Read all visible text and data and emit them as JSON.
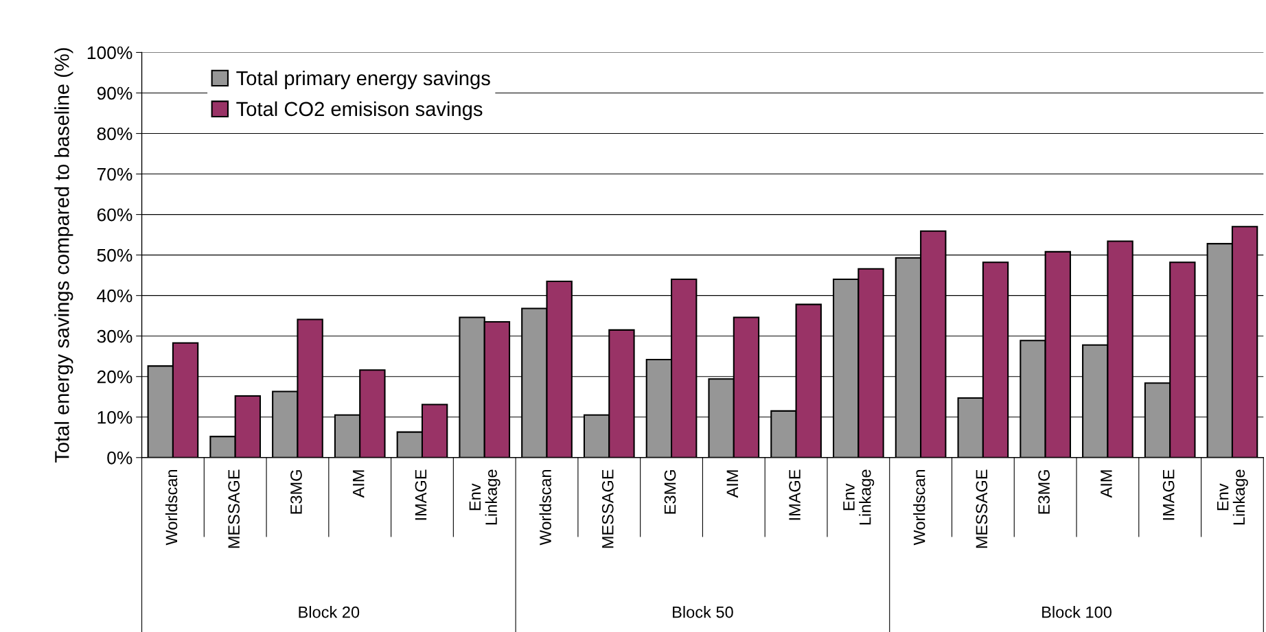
{
  "chart_data": {
    "type": "bar",
    "ylabel": "Total energy savings compared to baseline (%)",
    "categories": [
      "Worldscan",
      "MESSAGE",
      "E3MG",
      "AIM",
      "IMAGE",
      "Env\nLinkage",
      "Worldscan",
      "MESSAGE",
      "E3MG",
      "AIM",
      "IMAGE",
      "Env\nLinkage",
      "Worldscan",
      "MESSAGE",
      "E3MG",
      "AIM",
      "IMAGE",
      "Env\nLinkage"
    ],
    "series": [
      {
        "name": "Total primary energy savings",
        "color": "#969696",
        "values": [
          22.6,
          5.2,
          16.3,
          10.5,
          6.3,
          34.6,
          36.8,
          10.5,
          24.2,
          19.4,
          11.5,
          44.0,
          49.3,
          14.7,
          28.9,
          27.8,
          18.4,
          52.8
        ]
      },
      {
        "name": "Total CO2 emisison savings",
        "color": "#993366",
        "values": [
          28.3,
          15.2,
          34.1,
          21.6,
          13.1,
          33.5,
          43.5,
          31.5,
          44.0,
          34.6,
          37.8,
          46.6,
          55.9,
          48.2,
          50.8,
          53.4,
          48.2,
          57.0
        ]
      }
    ],
    "annotations": [
      "Block 20",
      "Block 50",
      "Block 100"
    ],
    "ylim": [
      0,
      100
    ],
    "yticks": [
      {
        "value": 0,
        "label": "0%"
      },
      {
        "value": 10,
        "label": "10%"
      },
      {
        "value": 20,
        "label": "20%"
      },
      {
        "value": 30,
        "label": "30%"
      },
      {
        "value": 40,
        "label": "40%"
      },
      {
        "value": 50,
        "label": "50%"
      },
      {
        "value": 60,
        "label": "60%"
      },
      {
        "value": 70,
        "label": "70%"
      },
      {
        "value": 80,
        "label": "80%"
      },
      {
        "value": 90,
        "label": "90%"
      },
      {
        "value": 100,
        "label": "100%"
      }
    ],
    "grid": "y",
    "legend": "top left"
  }
}
